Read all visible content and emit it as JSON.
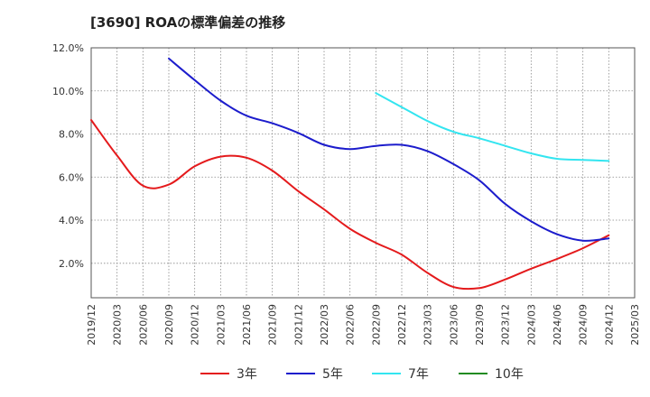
{
  "chart_data": {
    "type": "line",
    "title": "[3690]  ROAの標準偏差の推移",
    "xlabel": "",
    "ylabel": "",
    "ylim": [
      0.4,
      12.0
    ],
    "yticks": [
      2.0,
      4.0,
      6.0,
      8.0,
      10.0,
      12.0
    ],
    "ytick_labels": [
      "2.0%",
      "4.0%",
      "6.0%",
      "8.0%",
      "10.0%",
      "12.0%"
    ],
    "x_tick_labels": [
      "2019/12",
      "2020/03",
      "2020/06",
      "2020/09",
      "2020/12",
      "2021/03",
      "2021/06",
      "2021/09",
      "2021/12",
      "2022/03",
      "2022/06",
      "2022/09",
      "2022/12",
      "2023/03",
      "2023/06",
      "2023/09",
      "2023/12",
      "2024/03",
      "2024/06",
      "2024/09",
      "2024/12",
      "2025/03"
    ],
    "grid": true,
    "legend_position": "bottom",
    "series": [
      {
        "name": "3年",
        "color": "#e41a1c",
        "values": [
          8.65,
          7.0,
          5.6,
          5.65,
          6.5,
          6.95,
          6.9,
          6.3,
          5.35,
          4.5,
          3.6,
          2.95,
          2.4,
          1.55,
          0.9,
          0.85,
          1.25,
          1.75,
          2.2,
          2.7,
          3.3,
          null
        ]
      },
      {
        "name": "5年",
        "color": "#1c1ccc",
        "values": [
          null,
          null,
          null,
          11.5,
          10.5,
          9.55,
          8.85,
          8.5,
          8.05,
          7.5,
          7.3,
          7.45,
          7.5,
          7.2,
          6.6,
          5.85,
          4.75,
          3.95,
          3.35,
          3.05,
          3.15,
          null
        ]
      },
      {
        "name": "7年",
        "color": "#33e5f0",
        "values": [
          null,
          null,
          null,
          null,
          null,
          null,
          null,
          null,
          null,
          null,
          null,
          9.9,
          9.25,
          8.6,
          8.1,
          7.8,
          7.45,
          7.1,
          6.85,
          6.8,
          6.75,
          null
        ]
      },
      {
        "name": "10年",
        "color": "#228b22",
        "values": []
      }
    ]
  }
}
